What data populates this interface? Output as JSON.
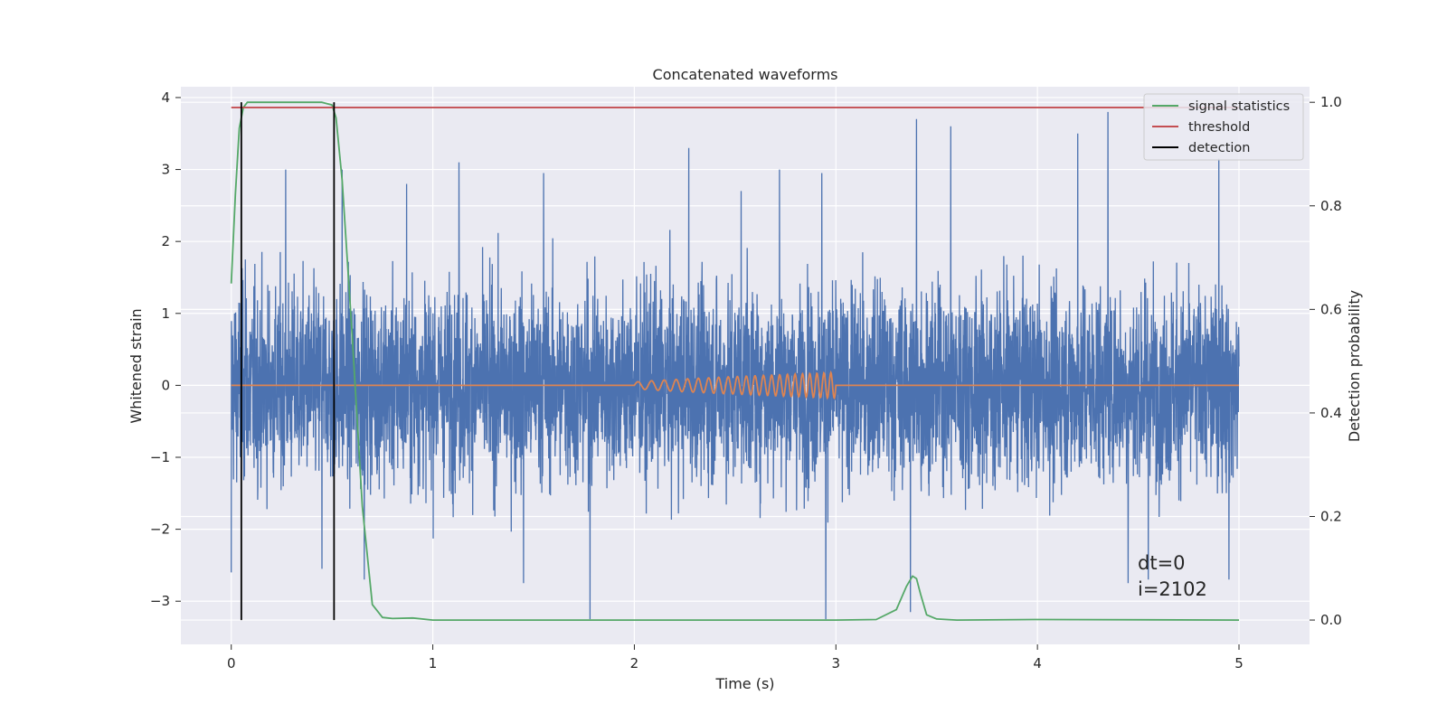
{
  "chart_data": {
    "type": "line",
    "title": "Concatenated waveforms",
    "xlabel": "Time (s)",
    "ylabel": "Whitened strain",
    "ylabel_right": "Detection probability",
    "xlim": [
      -0.25,
      5.35
    ],
    "ylim": [
      -3.6,
      4.15
    ],
    "ylim_right": [
      -0.047,
      1.03
    ],
    "x_ticks": [
      0,
      1,
      2,
      3,
      4,
      5
    ],
    "y_ticks": [
      -3,
      -2,
      -1,
      0,
      1,
      2,
      3,
      4
    ],
    "y_ticks_right": [
      0.0,
      0.2,
      0.4,
      0.6,
      0.8,
      1.0
    ],
    "grid": true,
    "legend_position": "top-right",
    "background": "#eaeaf2",
    "series": [
      {
        "name": "",
        "kind": "noise",
        "axis": "left",
        "color": "#4c72b0",
        "x_range": [
          0,
          5
        ],
        "envelope_typical": [
          -1.8,
          1.8
        ],
        "spikes": [
          [
            0.0,
            -2.6
          ],
          [
            0.07,
            1.75
          ],
          [
            0.27,
            3.0
          ],
          [
            0.45,
            -2.55
          ],
          [
            0.55,
            3.0
          ],
          [
            0.66,
            -2.7
          ],
          [
            0.87,
            2.8
          ],
          [
            1.13,
            3.1
          ],
          [
            1.45,
            -2.75
          ],
          [
            1.55,
            2.95
          ],
          [
            1.78,
            -3.25
          ],
          [
            2.27,
            3.3
          ],
          [
            2.53,
            2.7
          ],
          [
            2.72,
            3.0
          ],
          [
            2.93,
            2.95
          ],
          [
            2.95,
            -3.25
          ],
          [
            3.37,
            -3.15
          ],
          [
            3.4,
            3.7
          ],
          [
            3.57,
            3.6
          ],
          [
            4.2,
            3.5
          ],
          [
            4.35,
            3.8
          ],
          [
            4.45,
            -2.75
          ],
          [
            4.55,
            -2.7
          ],
          [
            4.9,
            3.15
          ],
          [
            4.95,
            -2.7
          ]
        ]
      },
      {
        "name": "",
        "kind": "chirp",
        "axis": "left",
        "color": "#dd8452",
        "x_range": [
          0,
          5
        ],
        "chirp_range": [
          2.0,
          3.0
        ],
        "chirp_max_amplitude": 0.18
      },
      {
        "name": "signal statistics",
        "axis": "right",
        "color": "#55a868",
        "x": [
          0.0,
          0.02,
          0.04,
          0.06,
          0.08,
          0.1,
          0.2,
          0.3,
          0.4,
          0.45,
          0.5,
          0.52,
          0.55,
          0.6,
          0.65,
          0.7,
          0.75,
          0.8,
          0.9,
          1.0,
          2.0,
          3.0,
          3.2,
          3.3,
          3.35,
          3.38,
          3.4,
          3.42,
          3.45,
          3.5,
          3.6,
          4.0,
          5.0
        ],
        "y": [
          0.65,
          0.82,
          0.95,
          0.99,
          1.0,
          1.0,
          1.0,
          1.0,
          1.0,
          1.0,
          0.995,
          0.97,
          0.85,
          0.55,
          0.22,
          0.03,
          0.005,
          0.003,
          0.004,
          0.0,
          0.0,
          0.0,
          0.001,
          0.02,
          0.065,
          0.085,
          0.08,
          0.05,
          0.01,
          0.002,
          0.0,
          0.001,
          0.0
        ]
      },
      {
        "name": "threshold",
        "axis": "right",
        "color": "#c44e52",
        "x": [
          0,
          5
        ],
        "y": [
          0.99,
          0.99
        ]
      },
      {
        "name": "detection",
        "axis": "right",
        "color": "#000000",
        "vlines": [
          0.05,
          0.51
        ],
        "y_span": [
          0.0,
          1.0
        ]
      }
    ],
    "annotations": [
      "dt=0",
      "i=2102"
    ]
  }
}
